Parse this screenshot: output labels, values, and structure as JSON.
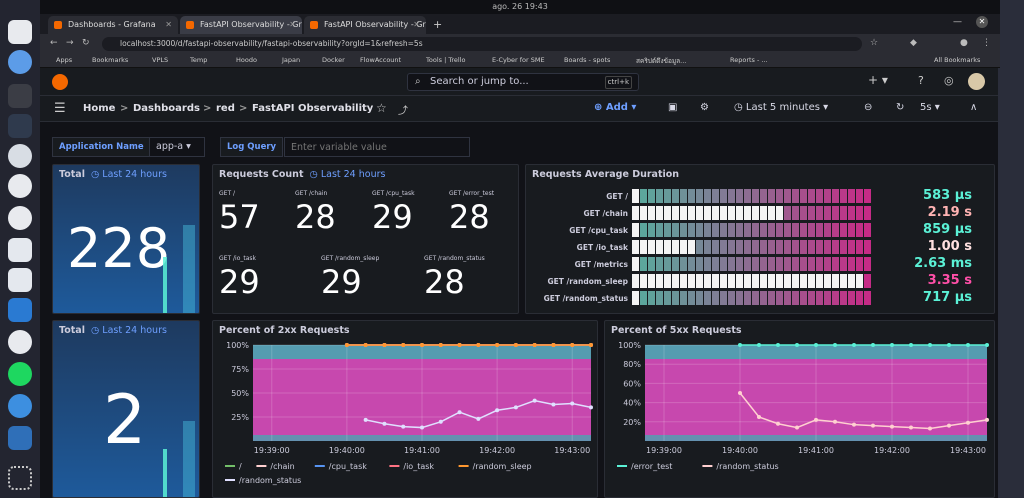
{
  "os": {
    "clock": "ago. 26 19:43"
  },
  "browser": {
    "tabs": [
      {
        "label": "Dashboards - Grafana"
      },
      {
        "label": "FastAPI Observability - Gr"
      },
      {
        "label": "FastAPI Observability - Gr"
      }
    ],
    "new_tab_label": "+",
    "url": "localhost:3000/d/fastapi-observability/fastapi-observability?orgId=1&refresh=5s",
    "bookmarks": [
      "Apps",
      "Bookmarks",
      "VPLS",
      "Temp",
      "Hoodo",
      "Japan",
      "Docker",
      "FlowAccount",
      "Tools | Trello",
      "E-Cyber for SME",
      "Boards - spots",
      "สคริปต์ดึงข้อมูล...",
      "Reports - ...",
      "All Bookmarks"
    ]
  },
  "grafana": {
    "search_placeholder": "Search or jump to...",
    "search_shortcut": "ctrl+k",
    "add_new": "+",
    "breadcrumb": [
      "Home",
      "Dashboards",
      "red",
      "FastAPI Observability"
    ],
    "crumb_sep": ">",
    "add_label": "Add",
    "time_range": "Last 5 minutes",
    "refresh": "5s",
    "variables": {
      "app_label": "Application Name",
      "app_value": "app-a",
      "log_label": "Log Query",
      "log_placeholder": "Enter variable value"
    }
  },
  "panels": {
    "total_top": {
      "title": "Total",
      "time": "Last 24 hours",
      "value": "228"
    },
    "requests_count": {
      "title": "Requests Count",
      "time": "Last 24 hours",
      "items": [
        {
          "label": "GET /",
          "value": "57"
        },
        {
          "label": "GET /chain",
          "value": "28"
        },
        {
          "label": "GET /cpu_task",
          "value": "29"
        },
        {
          "label": "GET /error_test",
          "value": "28"
        },
        {
          "label": "GET /io_task",
          "value": "29"
        },
        {
          "label": "GET /random_sleep",
          "value": "29"
        },
        {
          "label": "GET /random_status",
          "value": "28"
        }
      ]
    },
    "avg_duration": {
      "title": "Requests Average Duration",
      "rows": [
        {
          "label": "GET /",
          "value": "583 µs",
          "level": 0.02,
          "color": "#5bf1d6"
        },
        {
          "label": "GET /chain",
          "value": "2.19 s",
          "level": 0.62,
          "color": "#ffb3b3"
        },
        {
          "label": "GET /cpu_task",
          "value": "859 µs",
          "level": 0.02,
          "color": "#5bf1d6"
        },
        {
          "label": "GET /io_task",
          "value": "1.00 s",
          "level": 0.28,
          "color": "#ffe0e0"
        },
        {
          "label": "GET /metrics",
          "value": "2.63 ms",
          "level": 0.02,
          "color": "#5bf1d6"
        },
        {
          "label": "GET /random_sleep",
          "value": "3.35 s",
          "level": 0.95,
          "color": "#ff4fa8"
        },
        {
          "label": "GET /random_status",
          "value": "717 µs",
          "level": 0.02,
          "color": "#5bf1d6"
        }
      ]
    },
    "total_bottom": {
      "title": "Total",
      "time": "Last 24 hours",
      "value": "2"
    },
    "pct2xx": {
      "title": "Percent of 2xx Requests"
    },
    "pct5xx": {
      "title": "Percent of 5xx Requests"
    }
  },
  "chart_data": [
    {
      "type": "line",
      "title": "Percent of 2xx Requests",
      "x": [
        "19:38:45",
        "19:39:00",
        "19:39:15",
        "19:39:30",
        "19:39:45",
        "19:40:00",
        "19:40:15",
        "19:40:30",
        "19:40:45",
        "19:41:00",
        "19:41:15",
        "19:41:30",
        "19:41:45",
        "19:42:00",
        "19:42:15",
        "19:42:30",
        "19:42:45",
        "19:43:00",
        "19:43:15"
      ],
      "xticks": [
        "19:39:00",
        "19:40:00",
        "19:41:00",
        "19:42:00",
        "19:43:00"
      ],
      "yticks": [
        "25%",
        "50%",
        "75%",
        "100%"
      ],
      "ylim": [
        0,
        100
      ],
      "series": [
        {
          "name": "/",
          "color": "#73bf69",
          "values": [
            null,
            null,
            null,
            null,
            null,
            100,
            100,
            100,
            100,
            100,
            100,
            100,
            100,
            100,
            100,
            100,
            100,
            100,
            100
          ]
        },
        {
          "name": "/chain",
          "color": "#ffd0d0",
          "values": [
            null,
            null,
            null,
            null,
            null,
            100,
            100,
            100,
            100,
            100,
            100,
            100,
            100,
            100,
            100,
            100,
            100,
            100,
            100
          ]
        },
        {
          "name": "/cpu_task",
          "color": "#5794f2",
          "values": [
            null,
            null,
            null,
            null,
            null,
            100,
            100,
            100,
            100,
            100,
            100,
            100,
            100,
            100,
            100,
            100,
            100,
            100,
            100
          ]
        },
        {
          "name": "/io_task",
          "color": "#ff7383",
          "values": [
            null,
            null,
            null,
            null,
            null,
            100,
            100,
            100,
            100,
            100,
            100,
            100,
            100,
            100,
            100,
            100,
            100,
            100,
            100
          ]
        },
        {
          "name": "/random_sleep",
          "color": "#ff9830",
          "values": [
            null,
            null,
            null,
            null,
            null,
            100,
            100,
            100,
            100,
            100,
            100,
            100,
            100,
            100,
            100,
            100,
            100,
            100,
            100
          ]
        },
        {
          "name": "/random_status",
          "color": "#e0e0ff",
          "values": [
            null,
            null,
            null,
            null,
            null,
            null,
            22,
            18,
            15,
            14,
            20,
            30,
            23,
            32,
            35,
            42,
            38,
            39,
            35
          ]
        }
      ],
      "legend": "bottom"
    },
    {
      "type": "line",
      "title": "Percent of 5xx Requests",
      "x": [
        "19:38:45",
        "19:39:00",
        "19:39:15",
        "19:39:30",
        "19:39:45",
        "19:40:00",
        "19:40:15",
        "19:40:30",
        "19:40:45",
        "19:41:00",
        "19:41:15",
        "19:41:30",
        "19:41:45",
        "19:42:00",
        "19:42:15",
        "19:42:30",
        "19:42:45",
        "19:43:00",
        "19:43:15"
      ],
      "xticks": [
        "19:39:00",
        "19:40:00",
        "19:41:00",
        "19:42:00",
        "19:43:00"
      ],
      "yticks": [
        "20%",
        "40%",
        "60%",
        "80%",
        "100%"
      ],
      "ylim": [
        0,
        100
      ],
      "series": [
        {
          "name": "/error_test",
          "color": "#5bf1d6",
          "values": [
            null,
            null,
            null,
            null,
            null,
            100,
            100,
            100,
            100,
            100,
            100,
            100,
            100,
            100,
            100,
            100,
            100,
            100,
            100
          ]
        },
        {
          "name": "/random_status",
          "color": "#ffd0d0",
          "values": [
            null,
            null,
            null,
            null,
            null,
            50,
            25,
            18,
            14,
            22,
            20,
            17,
            16,
            15,
            14,
            13,
            16,
            19,
            22
          ]
        }
      ],
      "legend": "bottom"
    }
  ]
}
